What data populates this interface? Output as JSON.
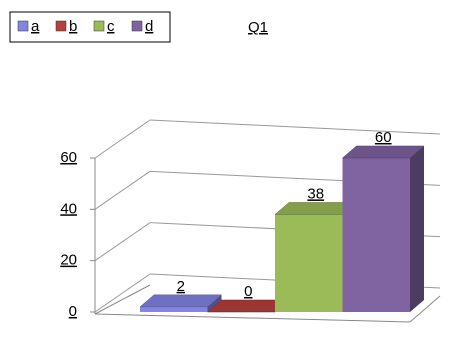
{
  "chart_data": {
    "type": "bar3d",
    "title": "Q1",
    "categories": [
      "a",
      "b",
      "c",
      "d"
    ],
    "values": [
      2,
      0,
      38,
      60
    ],
    "colors": [
      "#8484e4",
      "#b5403c",
      "#9bbb59",
      "#8064a2"
    ],
    "ylim": [
      0,
      60
    ],
    "yticks": [
      0,
      20,
      40,
      60
    ],
    "grid": true,
    "legend": "top-left"
  }
}
